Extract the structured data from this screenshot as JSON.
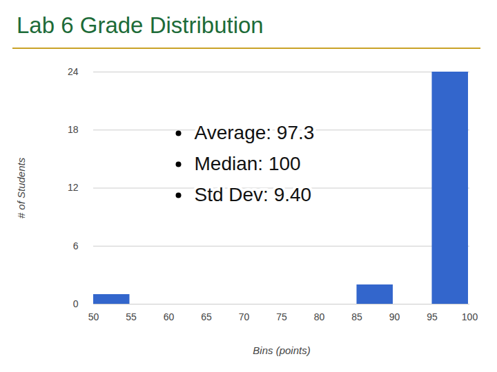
{
  "chart_data": {
    "type": "histogram",
    "title": "Lab 6 Grade Distribution",
    "x_label": "Bins (points)",
    "y_label": "# of Students",
    "bins": [
      50,
      55,
      60,
      65,
      70,
      75,
      80,
      85,
      90,
      95,
      100
    ],
    "values": [
      1,
      0,
      0,
      0,
      0,
      0,
      0,
      2,
      0,
      24
    ],
    "color": "#3366cc",
    "xlim": [
      50,
      100
    ],
    "xticks": [
      50,
      55,
      60,
      65,
      70,
      75,
      80,
      85,
      90,
      95,
      100
    ],
    "ylim": [
      0,
      24
    ],
    "yticks": [
      0,
      6,
      12,
      18,
      24
    ],
    "grid": true,
    "annotations": [
      "Average: 97.3",
      "Median: 100",
      "Std Dev: 9.40"
    ]
  }
}
